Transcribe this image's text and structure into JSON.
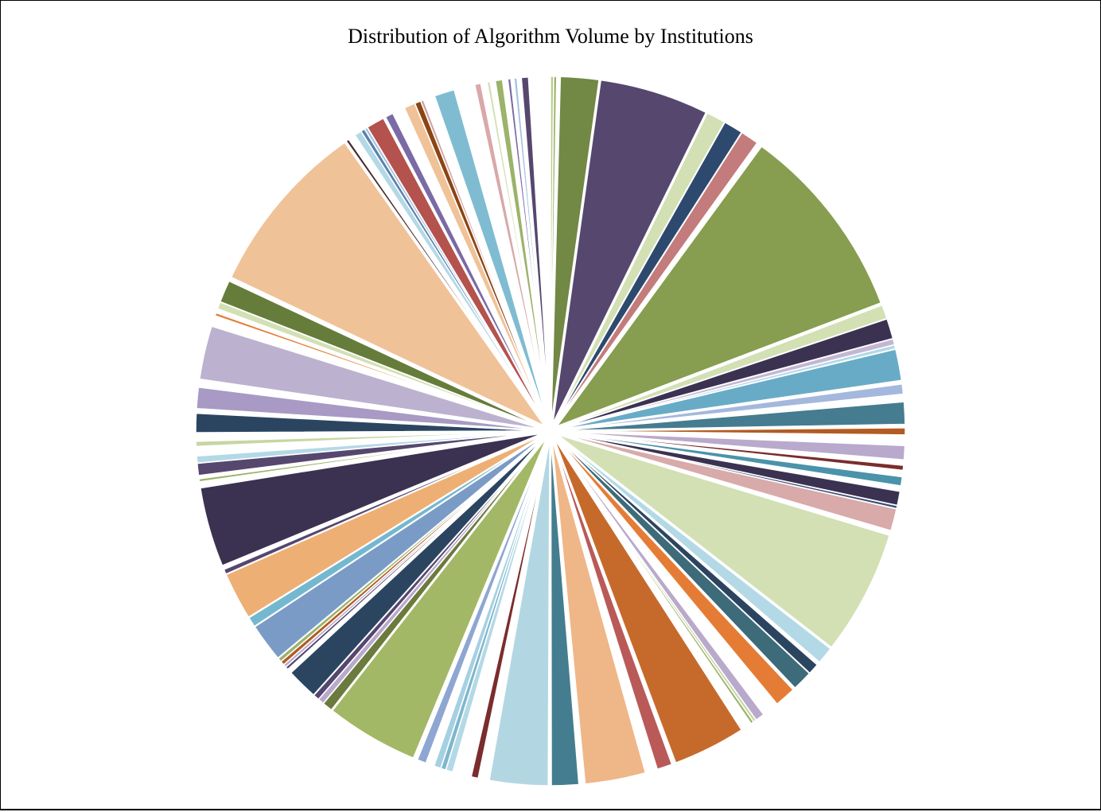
{
  "chart_data": {
    "type": "pie",
    "title": "Distribution of Algorithm Volume by Institutions",
    "start_angle_deg": -90,
    "direction": "clockwise",
    "exploded": true,
    "labels_shown": false,
    "legend": "none",
    "slices": [
      {
        "value": 0.15,
        "color": "#b9c98a"
      },
      {
        "value": 0.15,
        "color": "#9bb36a"
      },
      {
        "value": 0.15,
        "color": "#ffffff"
      },
      {
        "value": 1.9,
        "color": "#728845"
      },
      {
        "value": 5.4,
        "color": "#56476f"
      },
      {
        "value": 0.95,
        "color": "#d2e0b4"
      },
      {
        "value": 0.95,
        "color": "#2d4a6e"
      },
      {
        "value": 0.9,
        "color": "#c47b7b"
      },
      {
        "value": 0.15,
        "color": "#ffffff"
      },
      {
        "value": 9.75,
        "color": "#879d4f"
      },
      {
        "value": 0.7,
        "color": "#d2e0b4"
      },
      {
        "value": 1.0,
        "color": "#3b3251"
      },
      {
        "value": 0.3,
        "color": "#c4b7d4"
      },
      {
        "value": 0.2,
        "color": "#b3d9e6"
      },
      {
        "value": 1.55,
        "color": "#68abc7"
      },
      {
        "value": 0.15,
        "color": "#ffffff"
      },
      {
        "value": 0.5,
        "color": "#a4b8dd"
      },
      {
        "value": 0.35,
        "color": "#ffffff"
      },
      {
        "value": 1.1,
        "color": "#457c8f"
      },
      {
        "value": 0.15,
        "color": "#ffffff"
      },
      {
        "value": 0.35,
        "color": "#b35b22"
      },
      {
        "value": 0.5,
        "color": "#ffffff"
      },
      {
        "value": 0.7,
        "color": "#b9a9cc"
      },
      {
        "value": 0.25,
        "color": "#ffffff"
      },
      {
        "value": 0.25,
        "color": "#7b2c2c"
      },
      {
        "value": 0.3,
        "color": "#ffffff"
      },
      {
        "value": 0.45,
        "color": "#4a93aa"
      },
      {
        "value": 0.25,
        "color": "#ffffff"
      },
      {
        "value": 0.7,
        "color": "#3b3251"
      },
      {
        "value": 0.15,
        "color": "#3c4d78"
      },
      {
        "value": 1.1,
        "color": "#d8aaaa"
      },
      {
        "value": 0.15,
        "color": "#ffffff"
      },
      {
        "value": 6.2,
        "color": "#d2e0b4"
      },
      {
        "value": 0.85,
        "color": "#b3d9e6"
      },
      {
        "value": 0.15,
        "color": "#ffffff"
      },
      {
        "value": 0.55,
        "color": "#2b4561"
      },
      {
        "value": 1.0,
        "color": "#3d6b7a"
      },
      {
        "value": 0.1,
        "color": "#ffffff"
      },
      {
        "value": 1.05,
        "color": "#e57c35"
      },
      {
        "value": 0.8,
        "color": "#ffffff"
      },
      {
        "value": 0.45,
        "color": "#b9a9cc"
      },
      {
        "value": 0.15,
        "color": "#c7d6a2"
      },
      {
        "value": 0.15,
        "color": "#9bb36a"
      },
      {
        "value": 0.5,
        "color": "#ffffff"
      },
      {
        "value": 3.6,
        "color": "#c66a2c"
      },
      {
        "value": 0.15,
        "color": "#ffffff"
      },
      {
        "value": 0.75,
        "color": "#b95a58"
      },
      {
        "value": 0.55,
        "color": "#ffffff"
      },
      {
        "value": 3.0,
        "color": "#efb688"
      },
      {
        "value": 0.25,
        "color": "#ffffff"
      },
      {
        "value": 1.35,
        "color": "#447d8f"
      },
      {
        "value": 0.1,
        "color": "#ffffff"
      },
      {
        "value": 2.9,
        "color": "#b3d7e2"
      },
      {
        "value": 0.5,
        "color": "#ffffff"
      },
      {
        "value": 0.35,
        "color": "#7b2c2c"
      },
      {
        "value": 0.9,
        "color": "#ffffff"
      },
      {
        "value": 0.35,
        "color": "#b3d9e6"
      },
      {
        "value": 0.25,
        "color": "#7fb6cc"
      },
      {
        "value": 0.35,
        "color": "#a4d1e2"
      },
      {
        "value": 0.4,
        "color": "#ffffff"
      },
      {
        "value": 0.45,
        "color": "#8ea6d2"
      },
      {
        "value": 0.15,
        "color": "#ffffff"
      },
      {
        "value": 4.6,
        "color": "#a3b866"
      },
      {
        "value": 0.5,
        "color": "#6b7a3d"
      },
      {
        "value": 0.3,
        "color": "#b9a9cc"
      },
      {
        "value": 0.3,
        "color": "#56476f"
      },
      {
        "value": 1.55,
        "color": "#2b4561"
      },
      {
        "value": 0.2,
        "color": "#ffffff"
      },
      {
        "value": 0.15,
        "color": "#56476f"
      },
      {
        "value": 0.15,
        "color": "#b9a9cc"
      },
      {
        "value": 0.2,
        "color": "#b35b22"
      },
      {
        "value": 0.2,
        "color": "#9bb36a"
      },
      {
        "value": 1.9,
        "color": "#7b9bc7"
      },
      {
        "value": 0.5,
        "color": "#74b8cf"
      },
      {
        "value": 2.35,
        "color": "#eeaf75"
      },
      {
        "value": 0.25,
        "color": "#56476f"
      },
      {
        "value": 0.15,
        "color": "#ffffff"
      },
      {
        "value": 3.95,
        "color": "#3b3251"
      },
      {
        "value": 0.25,
        "color": "#ffffff"
      },
      {
        "value": 0.15,
        "color": "#9bb36a"
      },
      {
        "value": 0.15,
        "color": "#ffffff"
      },
      {
        "value": 0.6,
        "color": "#56476f"
      },
      {
        "value": 0.35,
        "color": "#b3d9e6"
      },
      {
        "value": 0.45,
        "color": "#ffffff"
      },
      {
        "value": 0.25,
        "color": "#c7d6a2"
      },
      {
        "value": 0.4,
        "color": "#ffffff"
      },
      {
        "value": 0.95,
        "color": "#2b4561"
      },
      {
        "value": 0.2,
        "color": "#ffffff"
      },
      {
        "value": 1.05,
        "color": "#a89ac4"
      },
      {
        "value": 0.35,
        "color": "#ffffff"
      },
      {
        "value": 2.65,
        "color": "#bcb1cf"
      },
      {
        "value": 0.5,
        "color": "#ffffff"
      },
      {
        "value": 0.15,
        "color": "#e57c35"
      },
      {
        "value": 0.2,
        "color": "#ffffff"
      },
      {
        "value": 0.35,
        "color": "#d2e0b4"
      },
      {
        "value": 1.1,
        "color": "#667c3a"
      },
      {
        "value": 0.1,
        "color": "#ffffff"
      },
      {
        "value": 8.7,
        "color": "#f0c298"
      },
      {
        "value": 0.15,
        "color": "#4a2a2a"
      },
      {
        "value": 0.35,
        "color": "#ffffff"
      },
      {
        "value": 0.35,
        "color": "#b3d9e6"
      },
      {
        "value": 0.2,
        "color": "#5b82ad"
      },
      {
        "value": 0.15,
        "color": "#a4c1e0"
      },
      {
        "value": 0.9,
        "color": "#b4524d"
      },
      {
        "value": 0.1,
        "color": "#ffffff"
      },
      {
        "value": 0.4,
        "color": "#7a6aa6"
      },
      {
        "value": 0.6,
        "color": "#ffffff"
      },
      {
        "value": 0.55,
        "color": "#f0c298"
      },
      {
        "value": 0.3,
        "color": "#8b4513"
      },
      {
        "value": 0.15,
        "color": "#d2a0a0"
      },
      {
        "value": 0.55,
        "color": "#ffffff"
      },
      {
        "value": 1.0,
        "color": "#7fbcd1"
      },
      {
        "value": 1.0,
        "color": "#ffffff"
      },
      {
        "value": 0.3,
        "color": "#d9a8a8"
      },
      {
        "value": 0.3,
        "color": "#ffffff"
      },
      {
        "value": 0.15,
        "color": "#d2e0b4"
      },
      {
        "value": 0.25,
        "color": "#ffffff"
      },
      {
        "value": 0.35,
        "color": "#9bb36a"
      },
      {
        "value": 0.25,
        "color": "#ffffff"
      },
      {
        "value": 0.15,
        "color": "#7a6aa6"
      },
      {
        "value": 0.15,
        "color": "#ffffff"
      },
      {
        "value": 0.15,
        "color": "#a4c1e0"
      },
      {
        "value": 0.2,
        "color": "#ffffff"
      },
      {
        "value": 0.35,
        "color": "#56476f"
      },
      {
        "value": 1.05,
        "color": "#ffffff"
      }
    ]
  }
}
